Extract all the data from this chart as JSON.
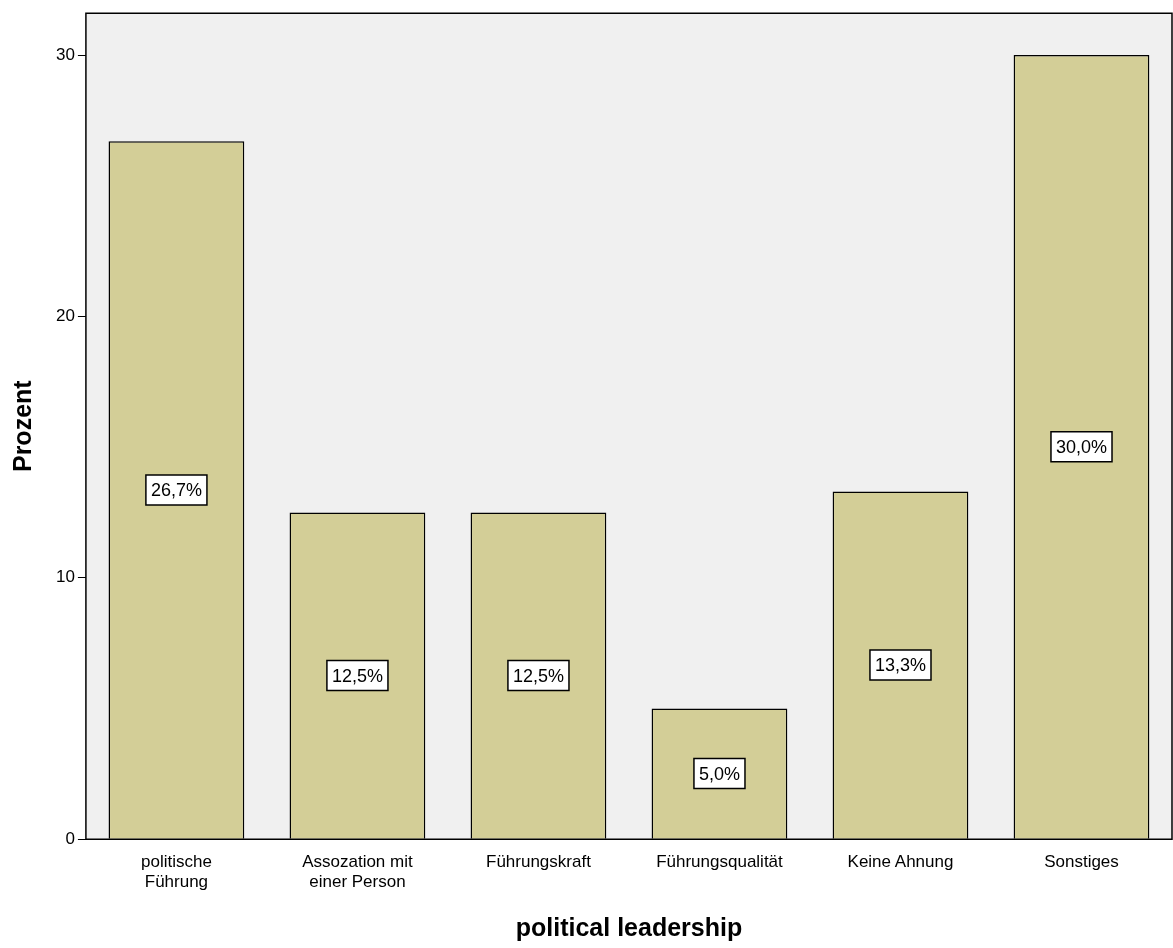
{
  "chart_data": {
    "type": "bar",
    "xlabel": "political leadership",
    "ylabel": "Prozent",
    "categories": [
      "politische Führung",
      "Assozation mit einer Person",
      "Führungskraft",
      "Führungsqualität",
      "Keine Ahnung",
      "Sonstiges"
    ],
    "values": [
      26.7,
      12.5,
      12.5,
      5.0,
      13.3,
      30.0
    ],
    "value_labels": [
      "26,7%",
      "12,5%",
      "12,5%",
      "5,0%",
      "13,3%",
      "30,0%"
    ],
    "color": "#d3ce97",
    "ylim": [
      0,
      31.6
    ],
    "yticks": [
      0,
      10,
      20,
      30
    ],
    "grid": false,
    "legend": false
  }
}
